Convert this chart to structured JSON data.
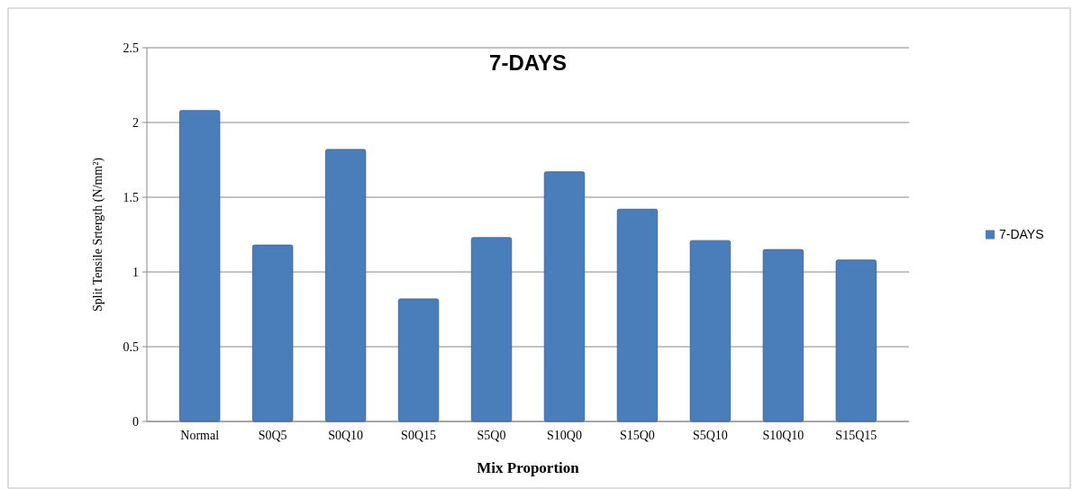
{
  "chart_data": {
    "type": "bar",
    "title": "7-DAYS",
    "xlabel": "Mix Proportion",
    "ylabel": "Split Tensile Srtergth (N/mm²)",
    "categories": [
      "Normal",
      "S0Q5",
      "S0Q10",
      "S0Q15",
      "S5Q0",
      "S10Q0",
      "S15Q0",
      "S5Q10",
      "S10Q10",
      "S15Q15"
    ],
    "series": [
      {
        "name": "7-DAYS",
        "color": "#4a7ebb",
        "values": [
          2.08,
          1.18,
          1.82,
          0.82,
          1.23,
          1.67,
          1.42,
          1.21,
          1.15,
          1.08
        ]
      }
    ],
    "ylim": [
      0,
      2.5
    ],
    "yticks": [
      0,
      0.5,
      1,
      1.5,
      2,
      2.5
    ],
    "grid": "y",
    "legend": "right"
  }
}
